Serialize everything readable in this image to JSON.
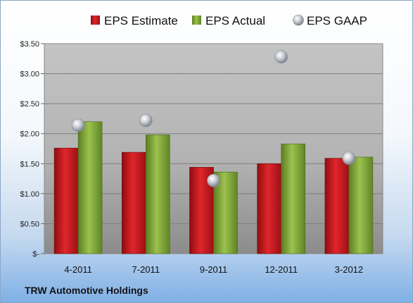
{
  "company_label": "TRW Automotive Holdings",
  "chart_data": {
    "type": "bar",
    "categories": [
      "4-2011",
      "7-2011",
      "9-2011",
      "12-2011",
      "3-2012"
    ],
    "series": [
      {
        "name": "EPS Estimate",
        "kind": "bar",
        "color": "#c0161b",
        "values": [
          1.76,
          1.69,
          1.44,
          1.5,
          1.59
        ]
      },
      {
        "name": "EPS Actual",
        "kind": "bar",
        "color": "#80a83a",
        "values": [
          2.2,
          1.98,
          1.36,
          1.83,
          1.61
        ]
      },
      {
        "name": "EPS GAAP",
        "kind": "scatter",
        "color": "#b8bcc4",
        "values": [
          2.14,
          2.22,
          1.22,
          3.28,
          1.59
        ]
      }
    ],
    "ylim": [
      0,
      3.5
    ],
    "yticks": [
      0,
      0.5,
      1.0,
      1.5,
      2.0,
      2.5,
      3.0,
      3.5
    ],
    "ytick_labels": [
      "$-",
      "$0.50",
      "$1.00",
      "$1.50",
      "$2.00",
      "$2.50",
      "$3.00",
      "$3.50"
    ],
    "grid": true,
    "legend": "top"
  }
}
